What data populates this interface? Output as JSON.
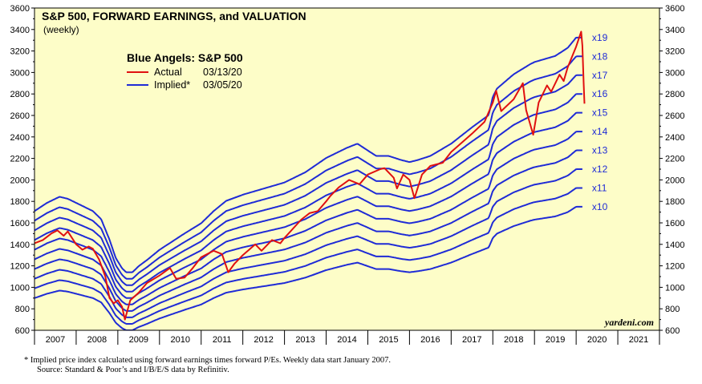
{
  "chart_data": {
    "type": "line",
    "title": "S&P 500, FORWARD EARNINGS, and VALUATION",
    "subtitle": "(weekly)",
    "legend_title": "Blue Angels: S&P 500",
    "legend": [
      {
        "name": "Actual",
        "date": "03/13/20",
        "color": "#e01010"
      },
      {
        "name": "Implied*",
        "date": "03/05/20",
        "color": "#1f2bd6"
      }
    ],
    "legend_placement": "top-left",
    "plot_background": "#fdfdc8",
    "grid": false,
    "x_range": [
      2007,
      2022
    ],
    "x_tick_labels": [
      "2007",
      "2008",
      "2009",
      "2010",
      "2011",
      "2012",
      "2013",
      "2014",
      "2015",
      "2016",
      "2017",
      "2018",
      "2019",
      "2020",
      "2021"
    ],
    "y_range": [
      600,
      3600
    ],
    "y_ticks": [
      600,
      800,
      1000,
      1200,
      1400,
      1600,
      1800,
      2000,
      2200,
      2400,
      2600,
      2800,
      3000,
      3200,
      3400,
      3600
    ],
    "y_tick_labels": [
      "600",
      "800",
      "1000",
      "1200",
      "1400",
      "1600",
      "1800",
      "2000",
      "2200",
      "2400",
      "2600",
      "2800",
      "3000",
      "3200",
      "3400",
      "3600"
    ],
    "forward_earnings": {
      "x": [
        2007.0,
        2007.3,
        2007.6,
        2007.8,
        2008.1,
        2008.4,
        2008.6,
        2008.8,
        2008.95,
        2009.1,
        2009.2,
        2009.35,
        2009.5,
        2009.7,
        2010.0,
        2010.3,
        2010.6,
        2011.0,
        2011.3,
        2011.6,
        2012.0,
        2012.5,
        2013.0,
        2013.5,
        2014.0,
        2014.5,
        2014.75,
        2014.9,
        2015.2,
        2015.5,
        2015.8,
        2016.0,
        2016.2,
        2016.5,
        2017.0,
        2017.5,
        2017.9,
        2018.0,
        2018.1,
        2018.5,
        2018.9,
        2019.0,
        2019.5,
        2019.8,
        2020.0,
        2020.15
      ],
      "values": [
        90,
        94,
        97,
        96,
        93,
        90,
        86,
        76,
        67,
        62,
        60,
        60,
        63,
        66,
        71,
        75,
        79,
        84,
        90,
        95,
        98,
        101,
        104,
        109,
        116,
        121,
        123,
        121,
        117,
        117,
        115,
        114,
        115,
        117,
        123,
        131,
        137,
        146,
        150,
        157,
        162,
        163,
        166,
        170,
        175,
        175
      ],
      "note": "approximate forward earnings per share implied by the x10 line"
    },
    "series": [
      {
        "name": "Actual",
        "color": "#e01010",
        "x": [
          2007.0,
          2007.2,
          2007.4,
          2007.55,
          2007.7,
          2007.8,
          2008.0,
          2008.15,
          2008.3,
          2008.4,
          2008.55,
          2008.7,
          2008.8,
          2008.9,
          2009.0,
          2009.1,
          2009.17,
          2009.3,
          2009.5,
          2009.7,
          2010.0,
          2010.25,
          2010.4,
          2010.6,
          2010.8,
          2011.0,
          2011.3,
          2011.5,
          2011.65,
          2011.8,
          2012.0,
          2012.3,
          2012.45,
          2012.7,
          2012.9,
          2013.0,
          2013.4,
          2013.6,
          2013.8,
          2014.0,
          2014.1,
          2014.3,
          2014.55,
          2014.8,
          2015.0,
          2015.3,
          2015.4,
          2015.62,
          2015.7,
          2015.85,
          2016.0,
          2016.12,
          2016.3,
          2016.5,
          2016.8,
          2017.0,
          2017.5,
          2017.8,
          2018.0,
          2018.08,
          2018.2,
          2018.5,
          2018.72,
          2018.8,
          2018.97,
          2019.1,
          2019.3,
          2019.4,
          2019.6,
          2019.7,
          2019.8,
          2020.0,
          2020.12,
          2020.15,
          2020.18,
          2020.2
        ],
        "values": [
          1410,
          1440,
          1500,
          1530,
          1480,
          1520,
          1400,
          1350,
          1380,
          1360,
          1260,
          1100,
          900,
          850,
          880,
          820,
          700,
          880,
          950,
          1040,
          1110,
          1180,
          1080,
          1090,
          1180,
          1280,
          1340,
          1310,
          1140,
          1220,
          1300,
          1400,
          1340,
          1440,
          1410,
          1460,
          1630,
          1690,
          1710,
          1800,
          1850,
          1930,
          2000,
          1960,
          2050,
          2100,
          2110,
          2020,
          1920,
          2050,
          2000,
          1830,
          2050,
          2130,
          2160,
          2260,
          2430,
          2540,
          2720,
          2830,
          2640,
          2750,
          2900,
          2650,
          2420,
          2720,
          2880,
          2820,
          2980,
          2920,
          3050,
          3240,
          3380,
          3250,
          2900,
          2710
        ],
        "note": "approximate weekly S&P 500 closes read from the chart"
      }
    ],
    "multiples": [
      "x10",
      "x11",
      "x12",
      "x13",
      "x14",
      "x15",
      "x16",
      "x17",
      "x18",
      "x19"
    ],
    "multiple_values": [
      10,
      11,
      12,
      13,
      14,
      15,
      16,
      17,
      18,
      19
    ],
    "implied_end_x": 2020.15,
    "credit": "yardeni.com"
  },
  "footnote": {
    "line1": "*   Implied price index calculated using forward earnings times forward P/Es. Weekly data start January 2007.",
    "line2": "Source: Standard & Poor’s and I/B/E/S data by Refinitiv."
  }
}
